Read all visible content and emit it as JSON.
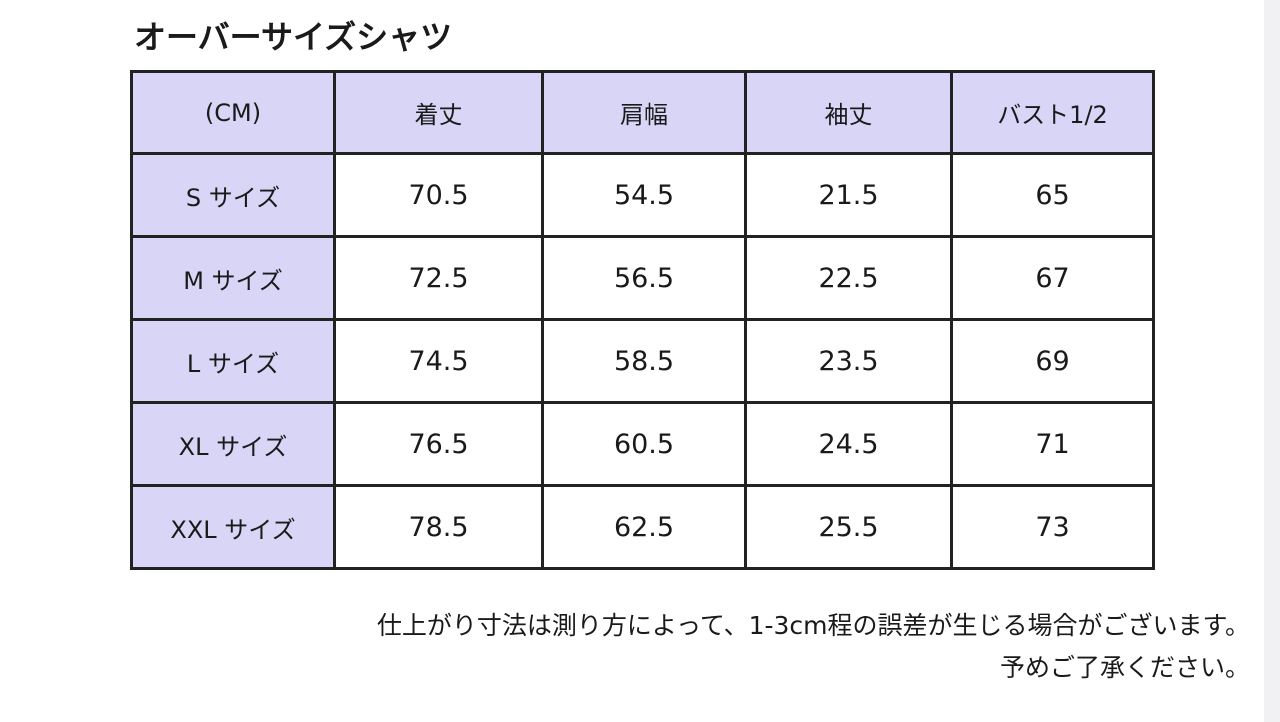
{
  "header": {
    "title": "オーバーサイズシャツ"
  },
  "table": {
    "columns": [
      "(CM)",
      "着丈",
      "肩幅",
      "袖丈",
      "バスト1/2"
    ],
    "rows": [
      [
        "S サイズ",
        "70.5",
        "54.5",
        "21.5",
        "65"
      ],
      [
        "M サイズ",
        "72.5",
        "56.5",
        "22.5",
        "67"
      ],
      [
        "L サイズ",
        "74.5",
        "58.5",
        "23.5",
        "69"
      ],
      [
        "XL サイズ",
        "76.5",
        "60.5",
        "24.5",
        "71"
      ],
      [
        "XXL サイズ",
        "78.5",
        "62.5",
        "25.5",
        "73"
      ]
    ]
  },
  "notes": [
    "仕上がり寸法は測り方によって、1-3cm程の誤差が生じる場合がございます。",
    "予めご了承ください。"
  ]
}
